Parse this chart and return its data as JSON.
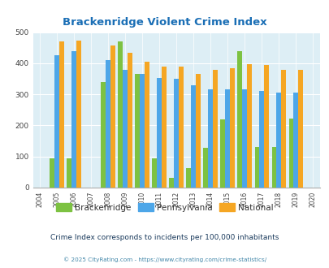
{
  "title": "Brackenridge Violent Crime Index",
  "years": [
    2004,
    2005,
    2006,
    2007,
    2008,
    2009,
    2010,
    2011,
    2012,
    2013,
    2014,
    2015,
    2016,
    2017,
    2018,
    2019,
    2020
  ],
  "brackenridge": [
    null,
    95,
    95,
    null,
    340,
    470,
    365,
    95,
    32,
    63,
    128,
    220,
    440,
    130,
    130,
    222,
    null
  ],
  "pennsylvania": [
    null,
    425,
    440,
    null,
    410,
    380,
    365,
    353,
    350,
    328,
    315,
    315,
    315,
    310,
    305,
    305,
    null
  ],
  "national": [
    null,
    470,
    473,
    null,
    456,
    433,
    406,
    388,
    388,
    367,
    378,
    383,
    398,
    394,
    380,
    380,
    null
  ],
  "colors": {
    "brackenridge": "#7dc242",
    "pennsylvania": "#4da6e8",
    "national": "#f5a623"
  },
  "ylim": [
    0,
    500
  ],
  "yticks": [
    0,
    100,
    200,
    300,
    400,
    500
  ],
  "plot_bg": "#ddeef5",
  "title_color": "#1a6eb5",
  "subtitle": "Crime Index corresponds to incidents per 100,000 inhabitants",
  "footer": "© 2025 CityRating.com - https://www.cityrating.com/crime-statistics/",
  "subtitle_color": "#1a3a5c",
  "footer_color": "#4488aa",
  "legend_text_color": "#333333"
}
